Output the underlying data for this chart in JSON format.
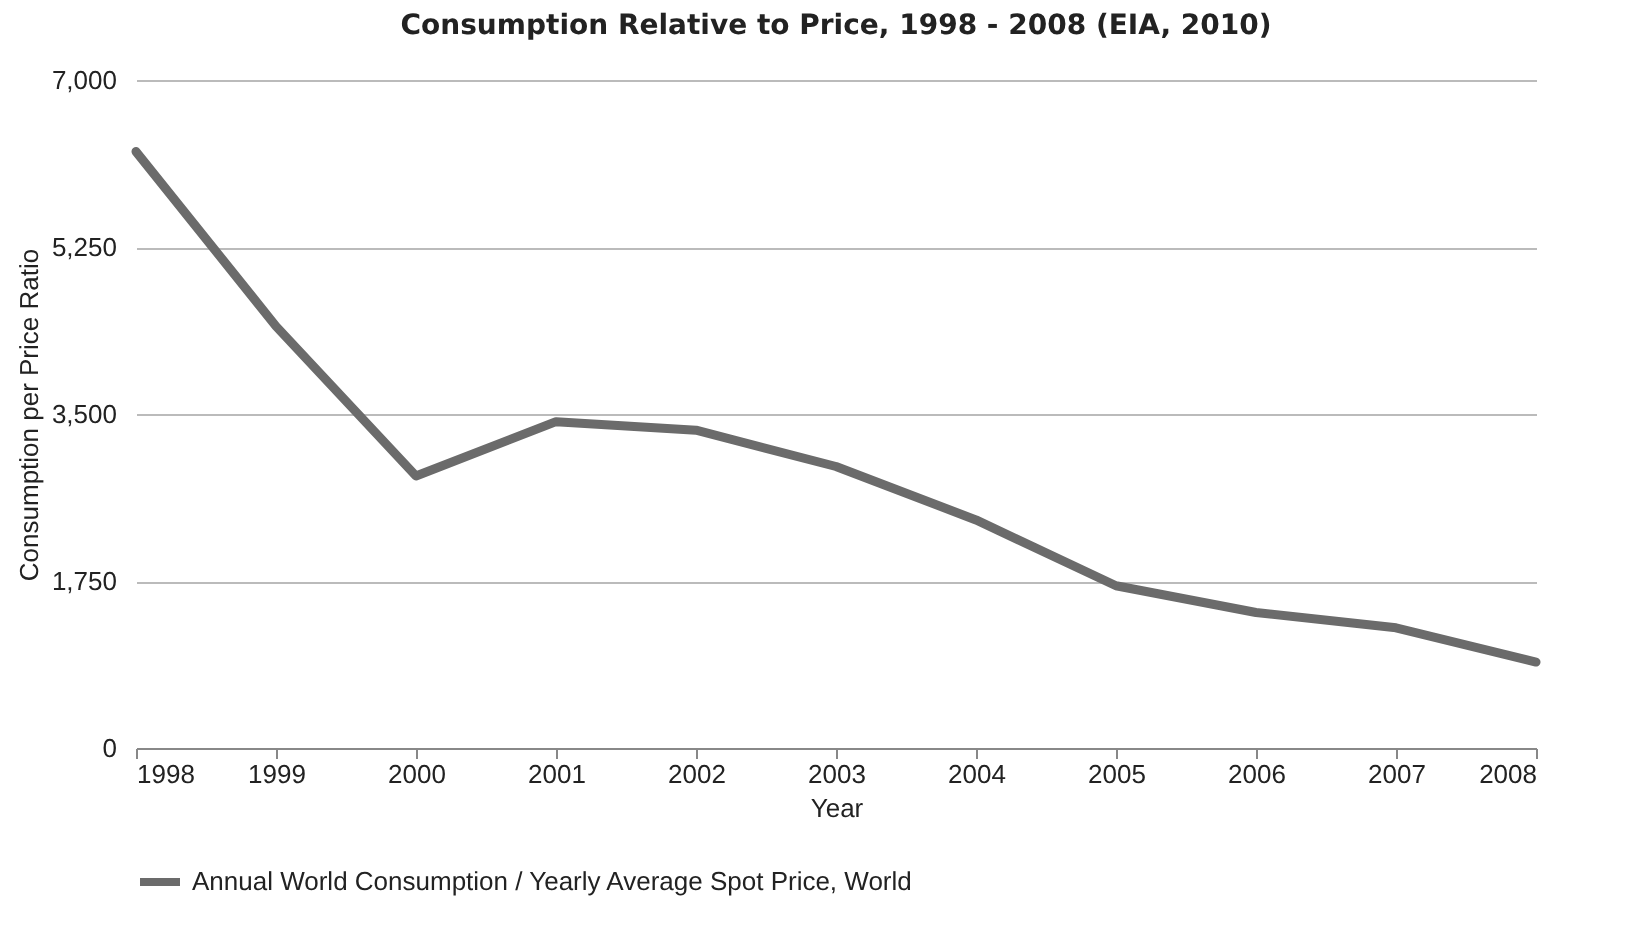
{
  "chart_data": {
    "type": "line",
    "title": "Consumption Relative to Price, 1998 - 2008 (EIA, 2010)",
    "xlabel": "Year",
    "ylabel": "Consumption per Price Ratio",
    "x": [
      1998,
      1999,
      2000,
      2001,
      2002,
      2003,
      2004,
      2005,
      2006,
      2007,
      2008
    ],
    "series": [
      {
        "name": "Annual World Consumption / Yearly Average Spot Price, World",
        "color": "#6b6b6b",
        "values": [
          6250,
          4420,
          2850,
          3420,
          3330,
          2950,
          2390,
          1700,
          1420,
          1260,
          900
        ]
      }
    ],
    "xlim": [
      1998,
      2008
    ],
    "xticks": [
      1998,
      1999,
      2000,
      2001,
      2002,
      2003,
      2004,
      2005,
      2006,
      2007,
      2008
    ],
    "ylim": [
      0,
      7000
    ],
    "yticks": [
      0,
      {
        "value": 1750,
        "label": "1,750"
      },
      {
        "value": 3500,
        "label": "3,500"
      },
      {
        "value": 5250,
        "label": "5,250"
      },
      {
        "value": 7000,
        "label": "7,000"
      }
    ],
    "grid": "y",
    "legend": "bottom",
    "marker": "none",
    "line_style": "solid"
  }
}
